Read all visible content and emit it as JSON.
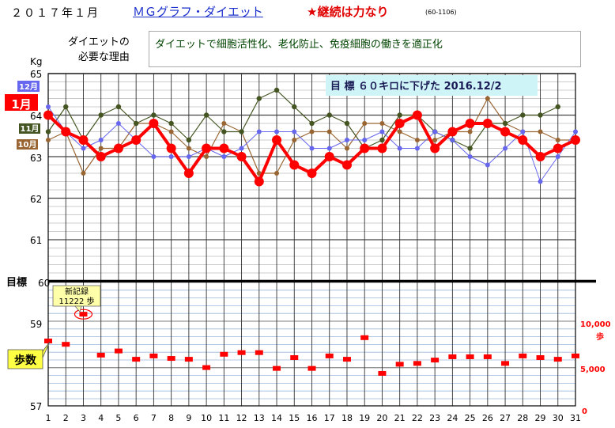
{
  "header": {
    "date": "２０１７年１月",
    "title_link": "ＭＧグラフ・ダイエット",
    "motto": "★継続は力なり",
    "code": "(60-1106)"
  },
  "reason": {
    "label_line1": "ダイエットの",
    "label_line2": "必要な理由",
    "text": "ダイエットで細胞活性化、老化防止、免疫細胞の働きを適正化"
  },
  "colors": {
    "current": "#ff0000",
    "dec": "#6666ee",
    "nov": "#445522",
    "oct": "#996633",
    "steps": "#ff0000",
    "goal_box": "#cff4f8",
    "record_box": "#ffffaa",
    "steps_label_box": "#ffff44"
  },
  "chart_data": {
    "type": "line",
    "x": [
      1,
      2,
      3,
      4,
      5,
      6,
      7,
      8,
      9,
      10,
      11,
      12,
      13,
      14,
      15,
      16,
      17,
      18,
      19,
      20,
      21,
      22,
      23,
      24,
      25,
      26,
      27,
      28,
      29,
      30,
      31
    ],
    "y_left_ticks": [
      "65",
      "64",
      "63",
      "62",
      "61",
      "60",
      "59",
      "57"
    ],
    "y_left_top_label": "Kg",
    "goal_label": "目標",
    "goal_weight": 60,
    "goal_note": "目 標 ６０キロに下げた 2016.12/2",
    "y_right_ticks": [
      "10,000",
      "5,000",
      "0"
    ],
    "y_right_unit": "歩",
    "steps_max": 10000,
    "series_labels": {
      "current": "1月",
      "dec": "12月",
      "nov": "11月",
      "oct": "10月",
      "steps": "歩数"
    },
    "series": [
      {
        "name": "1月",
        "values": [
          64.0,
          63.6,
          63.4,
          63.0,
          63.2,
          63.4,
          63.8,
          63.2,
          62.6,
          63.2,
          63.2,
          63.0,
          62.4,
          63.4,
          62.8,
          62.6,
          63.0,
          62.8,
          63.2,
          63.2,
          63.8,
          64.0,
          63.2,
          63.6,
          63.8,
          63.8,
          63.6,
          63.4,
          63.0,
          63.2,
          63.4
        ]
      },
      {
        "name": "12月",
        "values": [
          64.2,
          63.6,
          63.2,
          63.4,
          63.8,
          63.4,
          63.0,
          63.0,
          63.0,
          63.2,
          63.0,
          63.2,
          63.6,
          63.6,
          63.6,
          63.2,
          63.2,
          63.4,
          63.4,
          63.6,
          63.2,
          63.2,
          63.6,
          63.4,
          63.0,
          62.8,
          63.2,
          63.6,
          62.4,
          63.0,
          63.6
        ]
      },
      {
        "name": "11月",
        "values": [
          63.6,
          64.2,
          63.4,
          64.0,
          64.2,
          63.8,
          64.0,
          63.8,
          63.4,
          64.0,
          63.6,
          63.6,
          64.4,
          64.6,
          64.2,
          63.8,
          64.0,
          63.8,
          63.2,
          63.4,
          64.0,
          64.0,
          63.6,
          63.4,
          63.2,
          63.8,
          63.8,
          64.0,
          64.0,
          64.2,
          null
        ]
      },
      {
        "name": "10月",
        "values": [
          63.4,
          63.6,
          62.6,
          63.2,
          63.2,
          63.8,
          63.8,
          63.6,
          63.2,
          63.0,
          63.8,
          63.6,
          62.6,
          62.6,
          63.4,
          63.6,
          63.6,
          63.2,
          63.8,
          63.8,
          63.6,
          63.4,
          63.4,
          63.6,
          63.6,
          64.4,
          63.8,
          63.6,
          63.6,
          63.4,
          63.4
        ]
      }
    ],
    "steps": [
      8000,
      7600,
      11222,
      6300,
      6800,
      5800,
      6200,
      5900,
      5800,
      4800,
      6400,
      6600,
      6600,
      4700,
      6000,
      4700,
      6200,
      5800,
      8400,
      4100,
      5200,
      5300,
      5700,
      6100,
      6100,
      6100,
      5300,
      6200,
      6000,
      5800,
      6200
    ],
    "record_note_line1": "新記録",
    "record_note_line2": "11222 歩"
  }
}
